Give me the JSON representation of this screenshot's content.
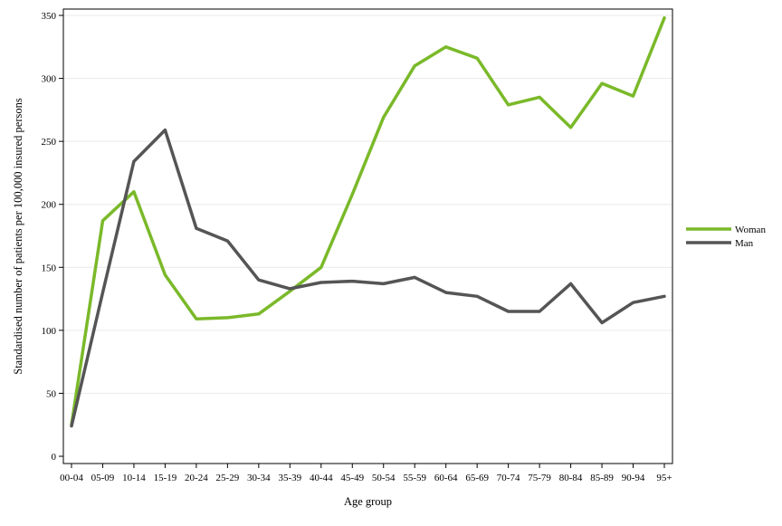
{
  "chart_data": {
    "type": "line",
    "title": "",
    "xlabel": "Age group",
    "ylabel": "Standardised number of patients per 100,000 insured persons",
    "categories": [
      "00-04",
      "05-09",
      "10-14",
      "15-19",
      "20-24",
      "25-29",
      "30-34",
      "35-39",
      "40-44",
      "45-49",
      "50-54",
      "55-59",
      "60-64",
      "65-69",
      "70-74",
      "75-79",
      "80-84",
      "85-89",
      "90-94",
      "95+"
    ],
    "ylim": [
      0,
      350
    ],
    "yticks": [
      0,
      50,
      100,
      150,
      200,
      250,
      300,
      350
    ],
    "grid": true,
    "legend_position": "right",
    "series": [
      {
        "name": "Woman",
        "color": "#7ab929",
        "values": [
          25,
          187,
          210,
          144,
          109,
          110,
          113,
          131,
          150,
          208,
          269,
          310,
          325,
          316,
          279,
          285,
          261,
          296,
          286,
          348
        ]
      },
      {
        "name": "Man",
        "color": "#555555",
        "values": [
          24,
          130,
          234,
          259,
          181,
          171,
          140,
          133,
          138,
          139,
          137,
          142,
          130,
          127,
          115,
          115,
          137,
          106,
          122,
          127
        ]
      }
    ]
  }
}
